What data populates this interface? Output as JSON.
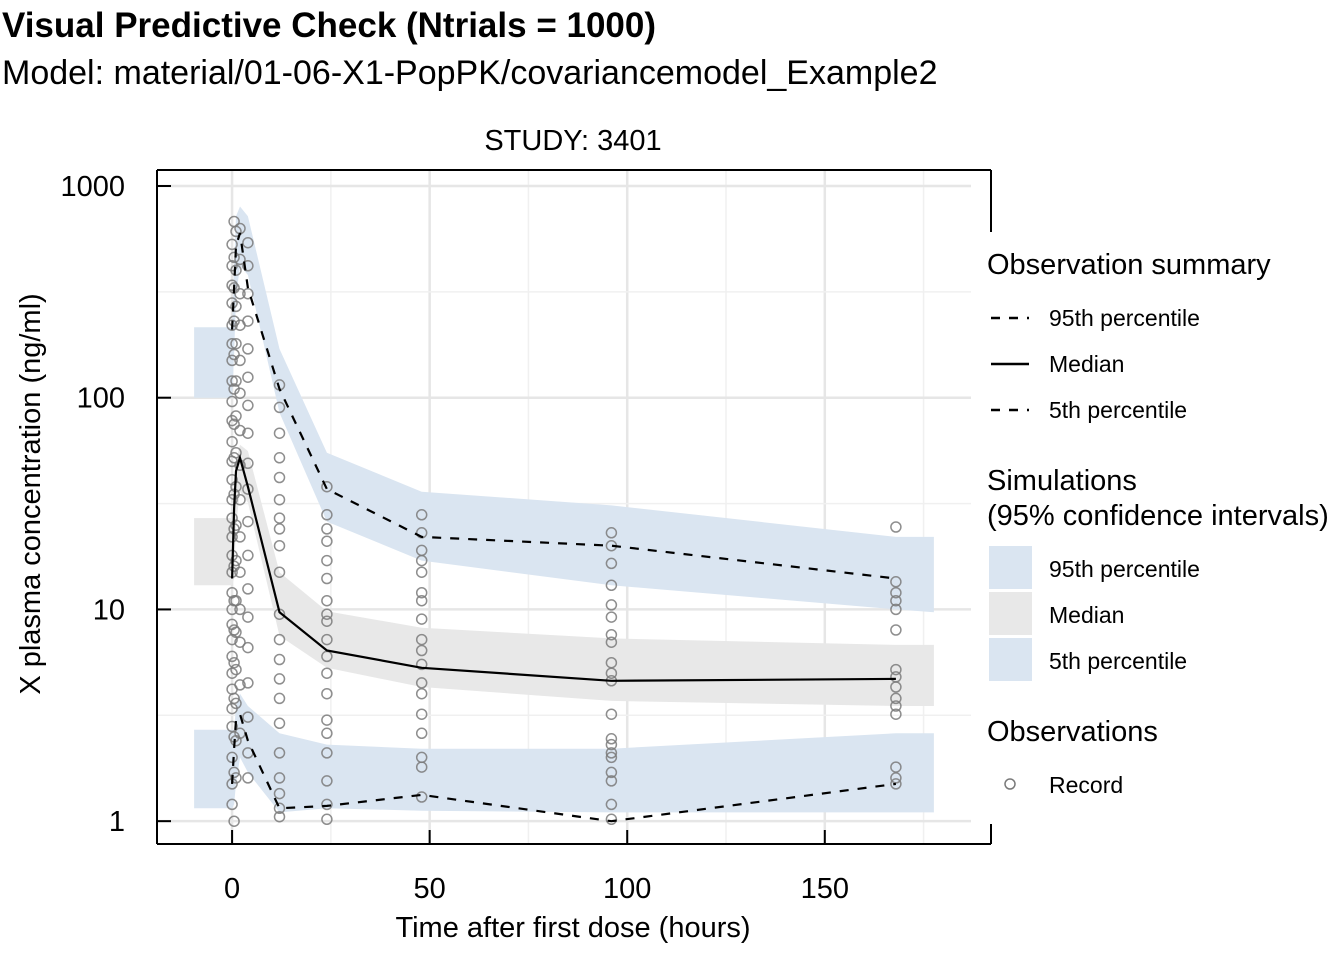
{
  "title": "Visual Predictive Check (Ntrials = 1000)",
  "subtitle": "Model: material/01-06-X1-PopPK/covariancemodel_Example2",
  "chart_data": {
    "type": "scatter",
    "panel_label": "STUDY: 3401",
    "xlabel": "Time after first dose (hours)",
    "ylabel": "X plasma concentration (ng/ml)",
    "x_scale": "linear",
    "y_scale": "log10",
    "xlim": [
      -19,
      187
    ],
    "ylim": [
      0.78,
      1190
    ],
    "x_ticks": [
      0,
      50,
      100,
      150
    ],
    "x_tick_labels": [
      "0",
      "50",
      "100",
      "150"
    ],
    "y_ticks": [
      1,
      10,
      100,
      1000
    ],
    "y_tick_labels": [
      "1",
      "10",
      "100",
      "1000"
    ],
    "grid": true,
    "colors": {
      "ci_outer": "#dae5f1",
      "ci_median": "#e8e8e8",
      "obs_line": "#000000",
      "point": "#7a7a7a"
    },
    "bins_x": [
      -9.6,
      177.6
    ],
    "obs_summary": {
      "x": [
        0,
        0.5,
        1,
        2,
        4,
        12,
        24,
        48,
        96,
        168
      ],
      "p95": [
        210,
        330,
        520,
        600,
        330,
        110,
        37,
        22,
        20,
        14
      ],
      "median": [
        14,
        30,
        45,
        52,
        38,
        9.7,
        6.4,
        5.3,
        4.6,
        4.7
      ],
      "p5": [
        1.5,
        2.2,
        3.0,
        3.2,
        2.4,
        1.15,
        1.18,
        1.33,
        1.0,
        1.5
      ]
    },
    "sim_ci": {
      "x": [
        -9.6,
        0,
        0.5,
        1,
        2,
        4,
        12,
        24,
        48,
        96,
        168,
        177.6
      ],
      "p95_low": [
        100,
        100,
        160,
        300,
        420,
        380,
        85,
        26,
        17,
        13,
        10,
        9.7
      ],
      "p95_high": [
        215,
        215,
        420,
        720,
        800,
        720,
        170,
        55,
        36,
        31,
        22,
        22
      ],
      "median_low": [
        13,
        13,
        14,
        25,
        36,
        32,
        7.5,
        5.3,
        4.3,
        3.7,
        3.5,
        3.5
      ],
      "median_high": [
        27,
        27,
        33,
        50,
        60,
        56,
        15,
        9.8,
        8.2,
        7.3,
        6.8,
        6.8
      ],
      "p5_low": [
        1.15,
        1.15,
        1.2,
        1.5,
        2.0,
        1.7,
        1.1,
        1.15,
        1.12,
        1.1,
        1.1,
        1.1
      ],
      "p5_high": [
        2.7,
        2.7,
        2.7,
        3.5,
        4.0,
        3.5,
        2.6,
        2.3,
        2.2,
        2.2,
        2.6,
        2.6
      ]
    },
    "observations": {
      "name": "Record",
      "points": [
        [
          0,
          1.2
        ],
        [
          0,
          1.5
        ],
        [
          0,
          2.0
        ],
        [
          0,
          2.8
        ],
        [
          0,
          3.4
        ],
        [
          0,
          4.2
        ],
        [
          0,
          5.0
        ],
        [
          0,
          6.0
        ],
        [
          0,
          7.2
        ],
        [
          0,
          8.5
        ],
        [
          0,
          10
        ],
        [
          0,
          12
        ],
        [
          0,
          15
        ],
        [
          0,
          18
        ],
        [
          0,
          22
        ],
        [
          0,
          27
        ],
        [
          0,
          33
        ],
        [
          0,
          41
        ],
        [
          0,
          50
        ],
        [
          0,
          62
        ],
        [
          0,
          78
        ],
        [
          0,
          96
        ],
        [
          0,
          120
        ],
        [
          0,
          150
        ],
        [
          0,
          180
        ],
        [
          0,
          220
        ],
        [
          0,
          280
        ],
        [
          0,
          340
        ],
        [
          0,
          420
        ],
        [
          0,
          530
        ],
        [
          0.5,
          1.0
        ],
        [
          0.5,
          1.7
        ],
        [
          0.5,
          2.5
        ],
        [
          0.5,
          3.8
        ],
        [
          0.5,
          5.6
        ],
        [
          0.5,
          8.0
        ],
        [
          0.5,
          11
        ],
        [
          0.5,
          16
        ],
        [
          0.5,
          24
        ],
        [
          0.5,
          35
        ],
        [
          0.5,
          52
        ],
        [
          0.5,
          75
        ],
        [
          0.5,
          110
        ],
        [
          0.5,
          160
        ],
        [
          0.5,
          230
        ],
        [
          0.5,
          330
        ],
        [
          0.5,
          460
        ],
        [
          0.5,
          680
        ],
        [
          1,
          1.6
        ],
        [
          1,
          2.4
        ],
        [
          1,
          3.6
        ],
        [
          1,
          5.2
        ],
        [
          1,
          7.8
        ],
        [
          1,
          11
        ],
        [
          1,
          17
        ],
        [
          1,
          25
        ],
        [
          1,
          38
        ],
        [
          1,
          55
        ],
        [
          1,
          82
        ],
        [
          1,
          120
        ],
        [
          1,
          180
        ],
        [
          1,
          270
        ],
        [
          1,
          400
        ],
        [
          1,
          610
        ],
        [
          2,
          2.6
        ],
        [
          2,
          4.4
        ],
        [
          2,
          7.0
        ],
        [
          2,
          10
        ],
        [
          2,
          15
        ],
        [
          2,
          22
        ],
        [
          2,
          33
        ],
        [
          2,
          48
        ],
        [
          2,
          70
        ],
        [
          2,
          105
        ],
        [
          2,
          150
        ],
        [
          2,
          220
        ],
        [
          2,
          310
        ],
        [
          2,
          450
        ],
        [
          2,
          630
        ],
        [
          4,
          1.6
        ],
        [
          4,
          2.1
        ],
        [
          4,
          3.1
        ],
        [
          4,
          4.5
        ],
        [
          4,
          6.6
        ],
        [
          4,
          9.2
        ],
        [
          4,
          12.5
        ],
        [
          4,
          18
        ],
        [
          4,
          26
        ],
        [
          4,
          37
        ],
        [
          4,
          49
        ],
        [
          4,
          68
        ],
        [
          4,
          92
        ],
        [
          4,
          125
        ],
        [
          4,
          170
        ],
        [
          4,
          230
        ],
        [
          4,
          310
        ],
        [
          4,
          420
        ],
        [
          4,
          540
        ],
        [
          12,
          1.05
        ],
        [
          12,
          1.15
        ],
        [
          12,
          1.35
        ],
        [
          12,
          1.6
        ],
        [
          12,
          2.1
        ],
        [
          12,
          2.9
        ],
        [
          12,
          3.8
        ],
        [
          12,
          4.7
        ],
        [
          12,
          5.8
        ],
        [
          12,
          7.2
        ],
        [
          12,
          9.5
        ],
        [
          12,
          15
        ],
        [
          12,
          20
        ],
        [
          12,
          24
        ],
        [
          12,
          27
        ],
        [
          12,
          33
        ],
        [
          12,
          42
        ],
        [
          12,
          52
        ],
        [
          12,
          68
        ],
        [
          12,
          90
        ],
        [
          12,
          115
        ],
        [
          24,
          1.02
        ],
        [
          24,
          1.2
        ],
        [
          24,
          1.55
        ],
        [
          24,
          2.1
        ],
        [
          24,
          2.6
        ],
        [
          24,
          3.0
        ],
        [
          24,
          4.0
        ],
        [
          24,
          5.0
        ],
        [
          24,
          6.0
        ],
        [
          24,
          7.2
        ],
        [
          24,
          8.8
        ],
        [
          24,
          9.5
        ],
        [
          24,
          11
        ],
        [
          24,
          14
        ],
        [
          24,
          17
        ],
        [
          24,
          21
        ],
        [
          24,
          24
        ],
        [
          24,
          28
        ],
        [
          24,
          38
        ],
        [
          48,
          1.3
        ],
        [
          48,
          1.8
        ],
        [
          48,
          2.0
        ],
        [
          48,
          2.6
        ],
        [
          48,
          3.2
        ],
        [
          48,
          4.0
        ],
        [
          48,
          4.5
        ],
        [
          48,
          5.5
        ],
        [
          48,
          6.4
        ],
        [
          48,
          7.2
        ],
        [
          48,
          9.0
        ],
        [
          48,
          11
        ],
        [
          48,
          12
        ],
        [
          48,
          15
        ],
        [
          48,
          17
        ],
        [
          48,
          19
        ],
        [
          48,
          23
        ],
        [
          48,
          28
        ],
        [
          96,
          1.02
        ],
        [
          96,
          1.2
        ],
        [
          96,
          1.55
        ],
        [
          96,
          1.7
        ],
        [
          96,
          2.0
        ],
        [
          96,
          2.1
        ],
        [
          96,
          2.3
        ],
        [
          96,
          2.45
        ],
        [
          96,
          3.2
        ],
        [
          96,
          4.6
        ],
        [
          96,
          5.0
        ],
        [
          96,
          5.6
        ],
        [
          96,
          7.0
        ],
        [
          96,
          7.6
        ],
        [
          96,
          9.2
        ],
        [
          96,
          10.5
        ],
        [
          96,
          13
        ],
        [
          96,
          16.5
        ],
        [
          96,
          20
        ],
        [
          96,
          23
        ],
        [
          168,
          1.5
        ],
        [
          168,
          1.6
        ],
        [
          168,
          1.8
        ],
        [
          168,
          3.2
        ],
        [
          168,
          3.5
        ],
        [
          168,
          3.8
        ],
        [
          168,
          4.3
        ],
        [
          168,
          4.8
        ],
        [
          168,
          5.2
        ],
        [
          168,
          8.0
        ],
        [
          168,
          10
        ],
        [
          168,
          11
        ],
        [
          168,
          12
        ],
        [
          168,
          13.5
        ],
        [
          168,
          24.5
        ]
      ]
    },
    "legend": {
      "placement": "right",
      "obs_summary_title": "Observation summary",
      "obs_summary_items": [
        "95th percentile",
        "Median",
        "5th percentile"
      ],
      "sim_title_line1": "Simulations",
      "sim_title_line2": "(95% confidence intervals)",
      "sim_items": [
        "95th percentile",
        "Median",
        "5th percentile"
      ],
      "observations_title": "Observations",
      "observations_item": "Record"
    }
  }
}
